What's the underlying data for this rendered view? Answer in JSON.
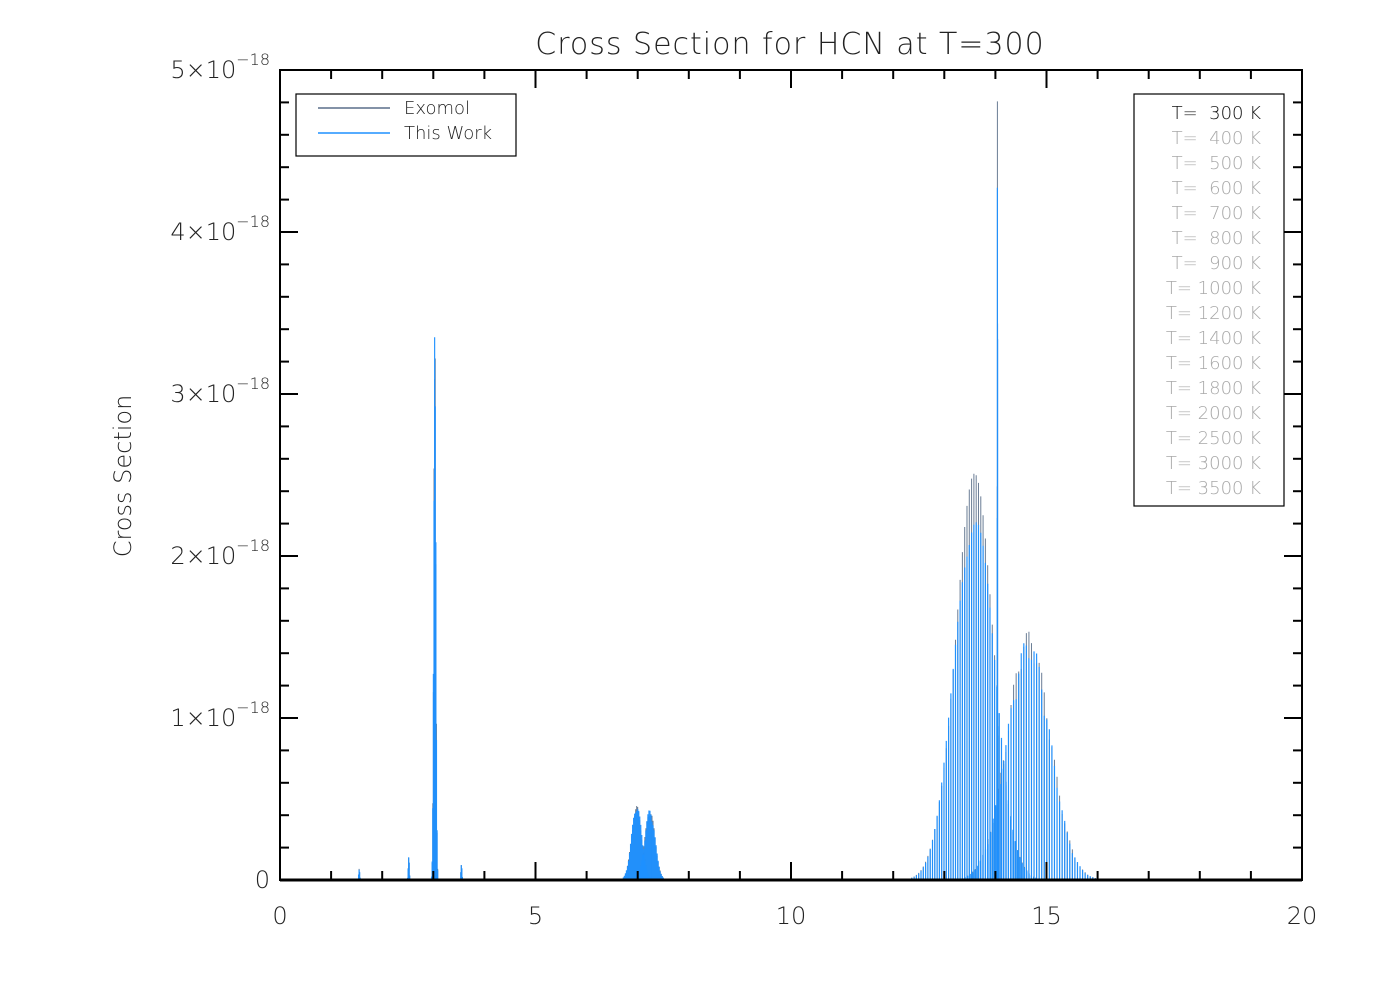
{
  "chart_data": {
    "type": "line",
    "title": "Cross Section for HCN at T=300",
    "xlabel": "",
    "ylabel": "Cross Section",
    "xlim": [
      0,
      20
    ],
    "ylim": [
      0,
      5e-18
    ],
    "x_ticks": [
      0,
      5,
      10,
      15,
      20
    ],
    "x_tick_labels": [
      "0",
      "5",
      "10",
      "15",
      "20"
    ],
    "y_ticks": [
      0,
      1e-18,
      2e-18,
      3e-18,
      4e-18,
      5e-18
    ],
    "y_tick_labels": [
      {
        "mant": "0",
        "exp": ""
      },
      {
        "mant": "1×10",
        "exp": "−18"
      },
      {
        "mant": "2×10",
        "exp": "−18"
      },
      {
        "mant": "3×10",
        "exp": "−18"
      },
      {
        "mant": "4×10",
        "exp": "−18"
      },
      {
        "mant": "5×10",
        "exp": "−18"
      }
    ],
    "grid": false,
    "legend_series": {
      "position": "top-left",
      "entries": [
        {
          "name": "Exomol",
          "color": "#5a6f8a"
        },
        {
          "name": "This Work",
          "color": "#1e90ff"
        }
      ]
    },
    "legend_temperatures": {
      "position": "top-right",
      "entries": [
        {
          "label": "T=  300 K",
          "active": true
        },
        {
          "label": "T=  400 K",
          "active": false
        },
        {
          "label": "T=  500 K",
          "active": false
        },
        {
          "label": "T=  600 K",
          "active": false
        },
        {
          "label": "T=  700 K",
          "active": false
        },
        {
          "label": "T=  800 K",
          "active": false
        },
        {
          "label": "T=  900 K",
          "active": false
        },
        {
          "label": "T= 1000 K",
          "active": false
        },
        {
          "label": "T= 1200 K",
          "active": false
        },
        {
          "label": "T= 1400 K",
          "active": false
        },
        {
          "label": "T= 1600 K",
          "active": false
        },
        {
          "label": "T= 1800 K",
          "active": false
        },
        {
          "label": "T= 2000 K",
          "active": false
        },
        {
          "label": "T= 2500 K",
          "active": false
        },
        {
          "label": "T= 3000 K",
          "active": false
        },
        {
          "label": "T= 3500 K",
          "active": false
        }
      ]
    },
    "series": [
      {
        "name": "Exomol",
        "color": "#5a6f8a",
        "bands": [
          {
            "center": 3.03,
            "width": 0.02,
            "peak": 3.5e-18,
            "spacing": 0.012
          },
          {
            "center": 6.98,
            "width": 0.1,
            "peak": 4.6e-19,
            "spacing": 0.02
          },
          {
            "center": 7.24,
            "width": 0.1,
            "peak": 4.4e-19,
            "spacing": 0.02
          },
          {
            "center": 13.58,
            "width": 0.38,
            "peak": 2.52e-18,
            "spacing": 0.045
          },
          {
            "center": 14.04,
            "width": 0.003,
            "peak": 5e-18,
            "spacing": 0.003
          },
          {
            "center": 14.65,
            "width": 0.42,
            "peak": 1.54e-18,
            "spacing": 0.05
          },
          {
            "center": 1.55,
            "width": 0.01,
            "peak": 7e-20,
            "spacing": 0.01
          },
          {
            "center": 2.52,
            "width": 0.01,
            "peak": 1.5e-19,
            "spacing": 0.01
          },
          {
            "center": 3.55,
            "width": 0.01,
            "peak": 1e-19,
            "spacing": 0.01
          }
        ]
      },
      {
        "name": "This Work",
        "color": "#1e90ff",
        "bands": [
          {
            "center": 3.03,
            "width": 0.02,
            "peak": 3.45e-18,
            "spacing": 0.012
          },
          {
            "center": 6.98,
            "width": 0.1,
            "peak": 4.7e-19,
            "spacing": 0.02
          },
          {
            "center": 7.24,
            "width": 0.1,
            "peak": 4.4e-19,
            "spacing": 0.02
          },
          {
            "center": 13.58,
            "width": 0.38,
            "peak": 2.4e-18,
            "spacing": 0.045
          },
          {
            "center": 14.04,
            "width": 0.003,
            "peak": 4.95e-18,
            "spacing": 0.003
          },
          {
            "center": 14.65,
            "width": 0.42,
            "peak": 1.5e-18,
            "spacing": 0.05
          },
          {
            "center": 1.55,
            "width": 0.01,
            "peak": 7e-20,
            "spacing": 0.01
          },
          {
            "center": 2.52,
            "width": 0.01,
            "peak": 1.5e-19,
            "spacing": 0.01
          },
          {
            "center": 3.55,
            "width": 0.01,
            "peak": 1e-19,
            "spacing": 0.01
          }
        ]
      }
    ]
  }
}
